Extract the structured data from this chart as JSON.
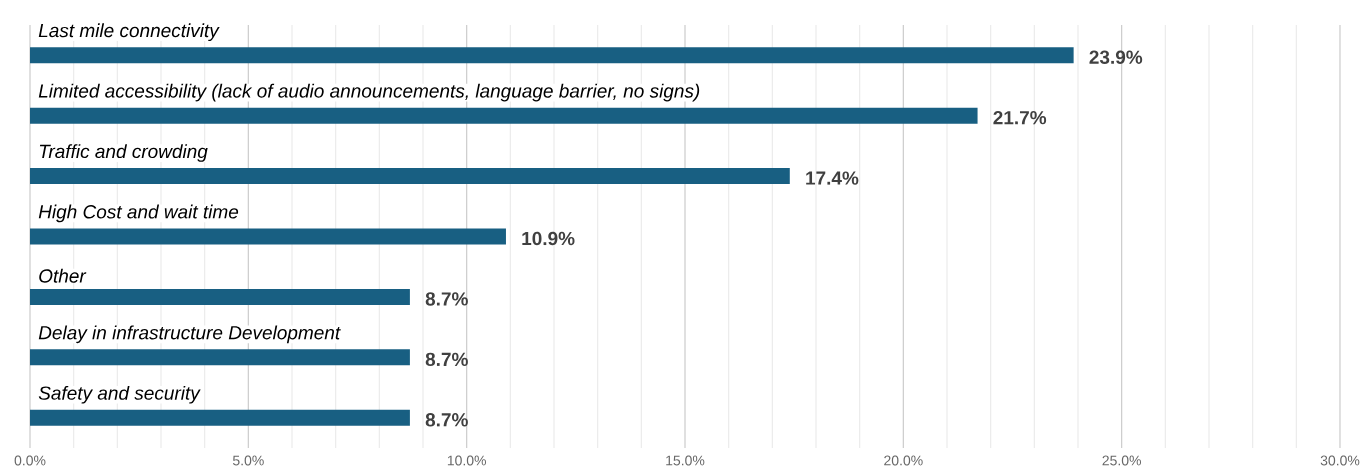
{
  "chart_data": {
    "type": "bar",
    "orientation": "horizontal",
    "categories": [
      "Last mile connectivity",
      "Limited accessibility (lack of audio announcements, language barrier, no signs)",
      "Traffic and crowding",
      "High Cost and wait time",
      "Other",
      "Delay in infrastructure Development",
      "Safety and security"
    ],
    "values": [
      23.9,
      21.7,
      17.4,
      10.9,
      8.7,
      8.7,
      8.7
    ],
    "value_labels": [
      "23.9%",
      "21.7%",
      "17.4%",
      "10.9%",
      "8.7%",
      "8.7%",
      "8.7%"
    ],
    "color": "#185f82",
    "xlim": [
      0,
      30
    ],
    "xticks": [
      {
        "value": 0,
        "label": "0.0%"
      },
      {
        "value": 5,
        "label": "5.0%"
      },
      {
        "value": 10,
        "label": "10.0%"
      },
      {
        "value": 15,
        "label": "15.0%"
      },
      {
        "value": 20,
        "label": "20.0%"
      },
      {
        "value": 25,
        "label": "25.0%"
      },
      {
        "value": 30,
        "label": "30.0%"
      }
    ],
    "grid": "x"
  }
}
